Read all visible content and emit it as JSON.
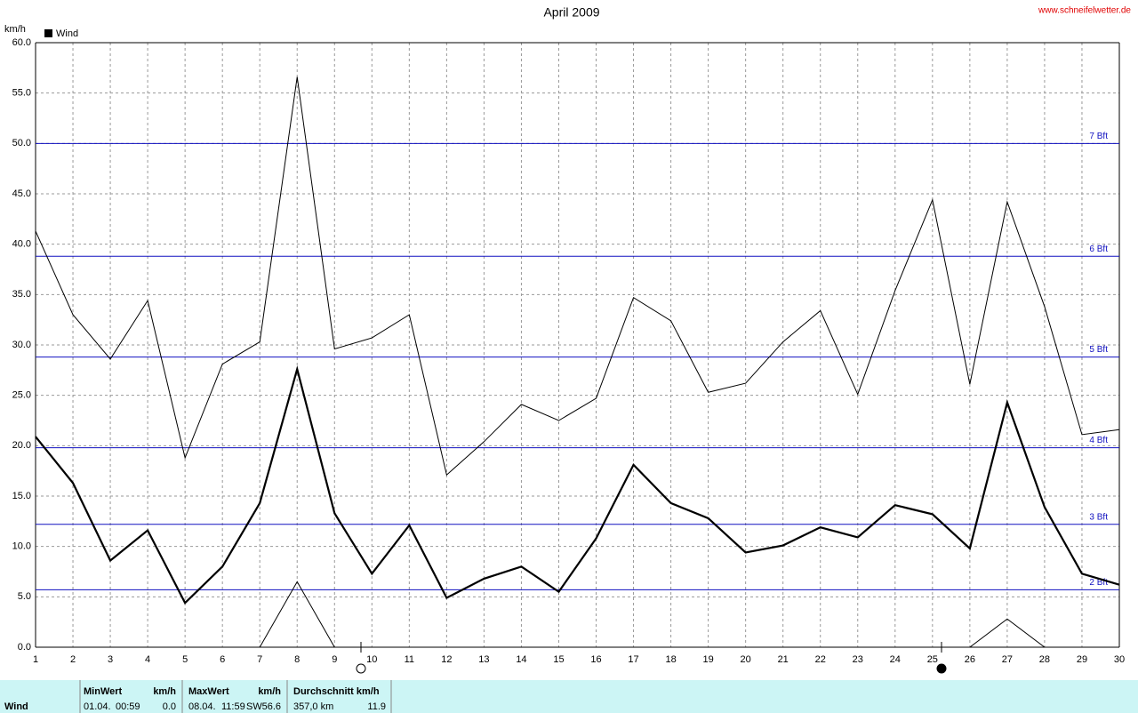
{
  "chart_data": {
    "type": "line",
    "title": "April 2009",
    "source": "www.schneifelwetter.de",
    "y_label": "km/h",
    "legend": "Wind",
    "legend_color": "#000000",
    "x": [
      1,
      2,
      3,
      4,
      5,
      6,
      7,
      8,
      9,
      10,
      11,
      12,
      13,
      14,
      15,
      16,
      17,
      18,
      19,
      20,
      21,
      22,
      23,
      24,
      25,
      26,
      27,
      28,
      29,
      30
    ],
    "xlim": [
      1,
      30
    ],
    "xticks": [
      1,
      2,
      3,
      4,
      5,
      6,
      7,
      8,
      9,
      10,
      11,
      12,
      13,
      14,
      15,
      16,
      17,
      18,
      19,
      20,
      21,
      22,
      23,
      24,
      25,
      26,
      27,
      28,
      29,
      30
    ],
    "ylim": [
      0,
      60
    ],
    "yticks": [
      {
        "value": 0,
        "label": "0.0"
      },
      {
        "value": 5,
        "label": "5.0"
      },
      {
        "value": 10,
        "label": "10.0"
      },
      {
        "value": 15,
        "label": "15.0"
      },
      {
        "value": 20,
        "label": "20.0"
      },
      {
        "value": 25,
        "label": "25.0"
      },
      {
        "value": 30,
        "label": "30.0"
      },
      {
        "value": 35,
        "label": "35.0"
      },
      {
        "value": 40,
        "label": "40.0"
      },
      {
        "value": 45,
        "label": "45.0"
      },
      {
        "value": 50,
        "label": "50.0"
      },
      {
        "value": 55,
        "label": "55.0"
      },
      {
        "value": 60,
        "label": "60.0"
      }
    ],
    "grid": true,
    "series": [
      {
        "color": "#000000",
        "values": [
          41.3,
          33.0,
          28.6,
          34.4,
          18.8,
          28.1,
          30.3,
          56.6,
          29.6,
          30.7,
          33.0,
          17.1,
          20.4,
          24.1,
          22.5,
          24.7,
          34.7,
          32.4,
          25.3,
          26.2,
          30.3,
          33.4,
          25.1,
          35.4,
          44.4,
          26.1,
          44.2,
          33.8,
          21.1,
          21.6
        ]
      },
      {
        "color": "#000000",
        "values": [
          20.9,
          16.3,
          8.6,
          11.6,
          4.4,
          8.0,
          14.3,
          27.6,
          13.3,
          7.3,
          12.1,
          4.9,
          6.8,
          8.0,
          5.5,
          10.8,
          18.1,
          14.3,
          12.8,
          9.4,
          10.1,
          11.9,
          10.9,
          14.1,
          13.2,
          9.8,
          24.3,
          13.9,
          7.3,
          6.2
        ]
      },
      {
        "color": "#000000",
        "values": [
          0,
          0,
          0,
          0,
          0,
          0,
          0,
          6.5,
          0,
          0,
          0,
          0,
          0,
          0,
          0,
          0,
          0,
          0,
          0,
          0,
          0,
          0,
          0,
          0,
          0,
          0,
          2.8,
          0,
          0,
          0
        ]
      }
    ],
    "reference_lines": [
      {
        "value": 50,
        "label": "7 Bft"
      },
      {
        "value": 38.8,
        "label": "6 Bft"
      },
      {
        "value": 28.8,
        "label": "5 Bft"
      },
      {
        "value": 19.8,
        "label": "4 Bft"
      },
      {
        "value": 12.2,
        "label": "3 Bft"
      },
      {
        "value": 5.7,
        "label": "2 Bft"
      }
    ],
    "reference_color": "#1010c0"
  },
  "summary": {
    "label": "Wind",
    "columns": [
      {
        "header": "MinWert",
        "unit": "km/h",
        "date": "01.04.",
        "time": "00:59",
        "value": "0.0"
      },
      {
        "header": "MaxWert",
        "unit": "km/h",
        "date": "08.04.",
        "time": "11:59",
        "direction": "SW",
        "value": "56.6"
      },
      {
        "header": "Durchschnitt km/h",
        "total": "357,0 km",
        "value": "11.9"
      }
    ]
  }
}
